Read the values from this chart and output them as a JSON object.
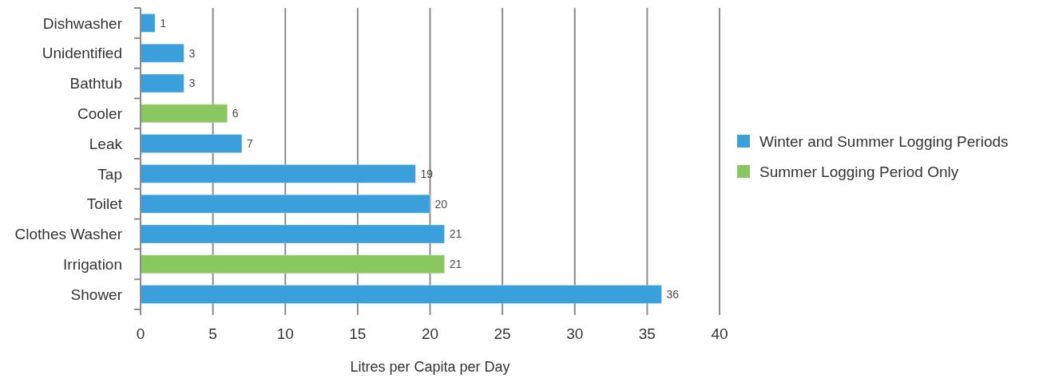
{
  "chart_data": {
    "type": "bar",
    "orientation": "horizontal",
    "stacked": true,
    "categories": [
      "Dishwasher",
      "Unidentified",
      "Bathtub",
      "Cooler",
      "Leak",
      "Tap",
      "Toilet",
      "Clothes Washer",
      "Irrigation",
      "Shower"
    ],
    "series": [
      {
        "name": "Winter and Summer Logging Periods",
        "color": "#3a9fda",
        "values": [
          1,
          3,
          3,
          null,
          7,
          19,
          20,
          21,
          null,
          36
        ]
      },
      {
        "name": "Summer Logging Period Only",
        "color": "#8bc761",
        "values": [
          null,
          null,
          null,
          6,
          null,
          null,
          null,
          null,
          21,
          null
        ]
      }
    ],
    "xlabel": "Litres per Capita per Day",
    "xlim": [
      0,
      40
    ],
    "xticks": [
      0,
      5,
      10,
      15,
      20,
      25,
      30,
      35,
      40
    ],
    "grid": "x",
    "legend": "right",
    "data_labels": true
  }
}
